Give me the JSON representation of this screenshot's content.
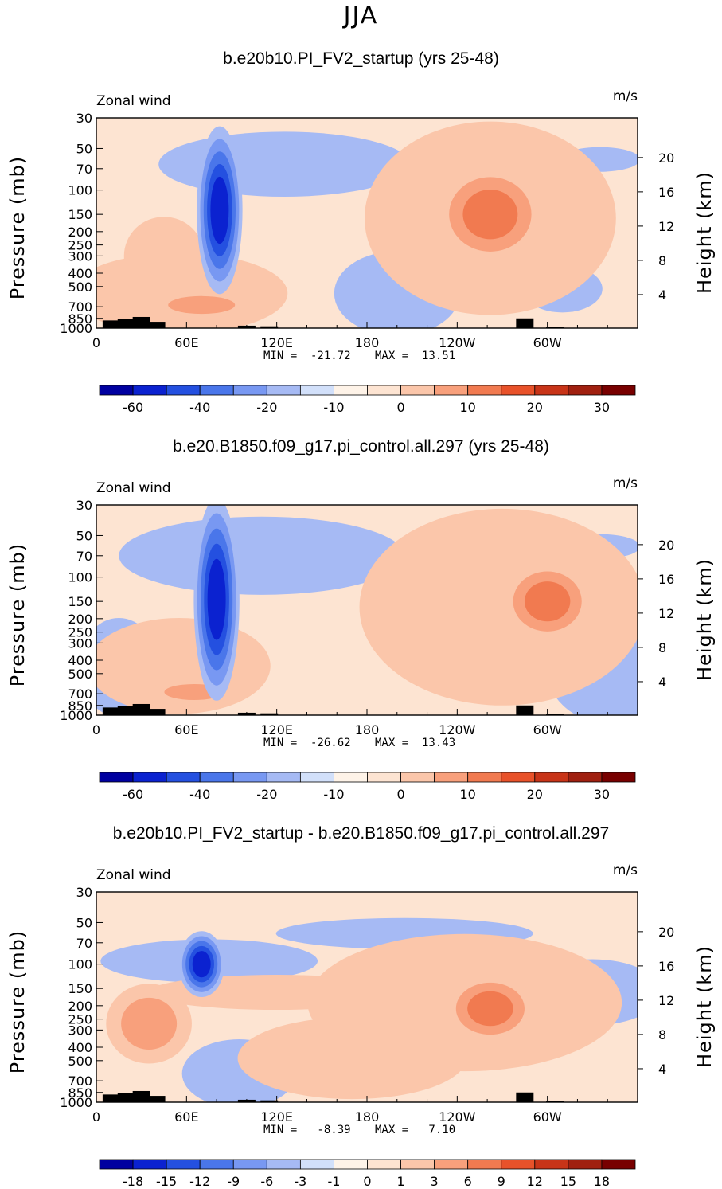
{
  "figure": {
    "title": "JJA"
  },
  "colors": {
    "negative": [
      "#0000a0",
      "#0b22d0",
      "#2450e0",
      "#4a76ea",
      "#7898f2",
      "#a6baf4",
      "#d2e0fa"
    ],
    "positive": [
      "#fde4d2",
      "#fbc6aa",
      "#f8a07c",
      "#f17a50",
      "#e8522a",
      "#c83418",
      "#a02010",
      "#780000"
    ],
    "background": "#fde4d2",
    "topography": "#000000"
  },
  "chart_data": [
    {
      "type": "contour",
      "title": "b.e20b10.PI_FV2_startup (yrs 25-48)",
      "variable": "Zonal wind",
      "units": "m/s",
      "ylabel_left": "Pressure (mb)",
      "ylabel_right": "Height (km)",
      "x_ticks": [
        "0",
        "60E",
        "120E",
        "180",
        "120W",
        "60W"
      ],
      "x_tick_values": [
        0,
        60,
        120,
        180,
        240,
        300
      ],
      "x_range": [
        0,
        360
      ],
      "p_ticks": [
        "30",
        "50",
        "70",
        "100",
        "150",
        "200",
        "250",
        "300",
        "400",
        "500",
        "700",
        "850",
        "1000"
      ],
      "p_tick_values": [
        30,
        50,
        70,
        100,
        150,
        200,
        250,
        300,
        400,
        500,
        700,
        850,
        1000
      ],
      "p_range": [
        30,
        1000
      ],
      "height_ticks": [
        "20",
        "16",
        "12",
        "8",
        "4"
      ],
      "height_tick_values": [
        20,
        16,
        12,
        8,
        4
      ],
      "min_text": "MIN =  -21.72",
      "max_text": "MAX =  13.51",
      "min": -21.72,
      "max": 13.51,
      "colorbar_labels": [
        "-60",
        "-40",
        "-20",
        "-10",
        "0",
        "10",
        "20",
        "30"
      ],
      "colorbar_label_bins": [
        1,
        3,
        5,
        7,
        9,
        11,
        13,
        15
      ],
      "features": [
        {
          "sign": "neg",
          "x": 82,
          "p": 140,
          "cx": 5,
          "cp": 80,
          "level": 5
        },
        {
          "sign": "neg",
          "x": 125,
          "p": 65,
          "cx": 44,
          "cp": 22,
          "level": 1
        },
        {
          "sign": "neg",
          "x": 200,
          "p": 560,
          "cx": 22,
          "cp": 240,
          "level": 1
        },
        {
          "sign": "neg",
          "x": 310,
          "p": 520,
          "cx": 14,
          "cp": 130,
          "level": 1
        },
        {
          "sign": "neg",
          "x": 335,
          "p": 60,
          "cx": 14,
          "cp": 8,
          "level": 1
        },
        {
          "sign": "pos",
          "x": 262,
          "p": 150,
          "cx": 12,
          "cp": 55,
          "level": 3
        },
        {
          "sign": "pos",
          "x": 262,
          "p": 160,
          "cx": 44,
          "cp": 125,
          "level": 1
        },
        {
          "sign": "pos",
          "x": 70,
          "p": 680,
          "cx": 18,
          "cp": 100,
          "level": 2
        },
        {
          "sign": "pos",
          "x": 45,
          "p": 300,
          "cx": 14,
          "cp": 120,
          "level": 1
        },
        {
          "sign": "pos",
          "x": 55,
          "p": 560,
          "cx": 38,
          "cp": 230,
          "level": 1
        }
      ]
    },
    {
      "type": "contour",
      "title": "b.e20.B1850.f09_g17.pi_control.all.297 (yrs 25-48)",
      "variable": "Zonal wind",
      "units": "m/s",
      "ylabel_left": "Pressure (mb)",
      "ylabel_right": "Height (km)",
      "x_ticks": [
        "0",
        "60E",
        "120E",
        "180",
        "120W",
        "60W"
      ],
      "x_tick_values": [
        0,
        60,
        120,
        180,
        240,
        300
      ],
      "x_range": [
        0,
        360
      ],
      "p_ticks": [
        "30",
        "50",
        "70",
        "100",
        "150",
        "200",
        "250",
        "300",
        "400",
        "500",
        "700",
        "850",
        "1000"
      ],
      "p_tick_values": [
        30,
        50,
        70,
        100,
        150,
        200,
        250,
        300,
        400,
        500,
        700,
        850,
        1000
      ],
      "p_range": [
        30,
        1000
      ],
      "height_ticks": [
        "20",
        "16",
        "12",
        "8",
        "4"
      ],
      "height_tick_values": [
        20,
        16,
        12,
        8,
        4
      ],
      "min_text": "MIN =  -26.62",
      "max_text": "MAX =  13.43",
      "min": -26.62,
      "max": 13.43,
      "colorbar_labels": [
        "-60",
        "-40",
        "-20",
        "-10",
        "0",
        "10",
        "20",
        "30"
      ],
      "colorbar_label_bins": [
        1,
        3,
        5,
        7,
        9,
        11,
        13,
        15
      ],
      "features": [
        {
          "sign": "neg",
          "x": 80,
          "p": 145,
          "cx": 5,
          "cp": 95,
          "level": 5
        },
        {
          "sign": "neg",
          "x": 110,
          "p": 70,
          "cx": 50,
          "cp": 28,
          "level": 1
        },
        {
          "sign": "neg",
          "x": 15,
          "p": 450,
          "cx": 14,
          "cp": 220,
          "level": 1
        },
        {
          "sign": "neg",
          "x": 340,
          "p": 420,
          "cx": 22,
          "cp": 240,
          "level": 1
        },
        {
          "sign": "neg",
          "x": 335,
          "p": 60,
          "cx": 14,
          "cp": 8,
          "level": 1
        },
        {
          "sign": "pos",
          "x": 300,
          "p": 150,
          "cx": 10,
          "cp": 45,
          "level": 3
        },
        {
          "sign": "pos",
          "x": 270,
          "p": 165,
          "cx": 50,
          "cp": 130,
          "level": 1
        },
        {
          "sign": "pos",
          "x": 65,
          "p": 680,
          "cx": 16,
          "cp": 90,
          "level": 2
        },
        {
          "sign": "pos",
          "x": 55,
          "p": 440,
          "cx": 32,
          "cp": 210,
          "level": 1
        },
        {
          "sign": "pos",
          "x": 250,
          "p": 330,
          "cx": 16,
          "cp": 60,
          "level": 1
        }
      ]
    },
    {
      "type": "contour",
      "title": "b.e20b10.PI_FV2_startup - b.e20.B1850.f09_g17.pi_control.all.297",
      "variable": "Zonal wind",
      "units": "m/s",
      "ylabel_left": "Pressure (mb)",
      "ylabel_right": "Height (km)",
      "x_ticks": [
        "0",
        "60E",
        "120E",
        "180",
        "120W",
        "60W"
      ],
      "x_tick_values": [
        0,
        60,
        120,
        180,
        240,
        300
      ],
      "x_range": [
        0,
        360
      ],
      "p_ticks": [
        "30",
        "50",
        "70",
        "100",
        "150",
        "200",
        "250",
        "300",
        "400",
        "500",
        "700",
        "850",
        "1000"
      ],
      "p_tick_values": [
        30,
        50,
        70,
        100,
        150,
        200,
        250,
        300,
        400,
        500,
        700,
        850,
        1000
      ],
      "p_range": [
        30,
        1000
      ],
      "height_ticks": [
        "20",
        "16",
        "12",
        "8",
        "4"
      ],
      "height_tick_values": [
        20,
        16,
        12,
        8,
        4
      ],
      "min_text": "MIN =   -8.39",
      "max_text": "MAX =   7.10",
      "min": -8.39,
      "max": 7.1,
      "colorbar_labels": [
        "-18",
        "-15",
        "-12",
        "-9",
        "-6",
        "-3",
        "-1",
        "0",
        "1",
        "3",
        "6",
        "9",
        "12",
        "15",
        "18"
      ],
      "colorbar_label_bins": [
        1,
        2,
        3,
        4,
        5,
        6,
        7,
        8,
        9,
        10,
        11,
        12,
        13,
        14,
        15
      ],
      "features": [
        {
          "sign": "neg",
          "x": 70,
          "p": 100,
          "cx": 5,
          "cp": 25,
          "level": 5
        },
        {
          "sign": "neg",
          "x": 75,
          "p": 95,
          "cx": 38,
          "cp": 22,
          "level": 1
        },
        {
          "sign": "neg",
          "x": 330,
          "p": 160,
          "cx": 24,
          "cp": 55,
          "level": 1
        },
        {
          "sign": "neg",
          "x": 95,
          "p": 620,
          "cx": 20,
          "cp": 220,
          "level": 1
        },
        {
          "sign": "neg",
          "x": 205,
          "p": 60,
          "cx": 45,
          "cp": 10,
          "level": 1
        },
        {
          "sign": "pos",
          "x": 262,
          "p": 210,
          "cx": 10,
          "cp": 55,
          "level": 3
        },
        {
          "sign": "pos",
          "x": 245,
          "p": 190,
          "cx": 55,
          "cp": 120,
          "level": 1
        },
        {
          "sign": "pos",
          "x": 35,
          "p": 270,
          "cx": 15,
          "cp": 110,
          "level": 2
        },
        {
          "sign": "pos",
          "x": 120,
          "p": 160,
          "cx": 45,
          "cp": 30,
          "level": 1
        },
        {
          "sign": "pos",
          "x": 170,
          "p": 480,
          "cx": 40,
          "cp": 200,
          "level": 1
        }
      ]
    }
  ]
}
